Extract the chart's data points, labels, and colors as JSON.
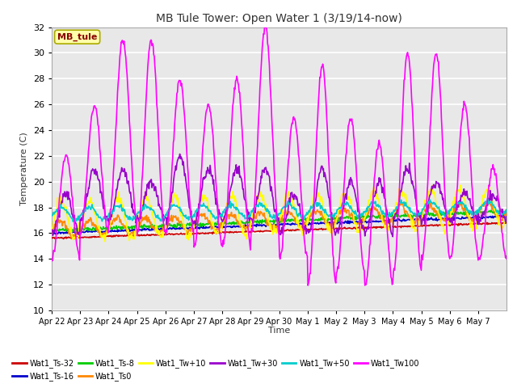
{
  "title": "MB Tule Tower: Open Water 1 (3/19/14-now)",
  "xlabel": "Time",
  "ylabel": "Temperature (C)",
  "ylim": [
    10,
    32
  ],
  "yticks": [
    10,
    12,
    14,
    16,
    18,
    20,
    22,
    24,
    26,
    28,
    30,
    32
  ],
  "bg_color": "#ffffff",
  "plot_bg": "#e8e8e8",
  "series": {
    "Wat1_Ts-32": {
      "color": "#cc0000",
      "lw": 1.2
    },
    "Wat1_Ts-16": {
      "color": "#0000cc",
      "lw": 1.2
    },
    "Wat1_Ts-8": {
      "color": "#00cc00",
      "lw": 1.2
    },
    "Wat1_Ts0": {
      "color": "#ff8800",
      "lw": 1.2
    },
    "Wat1_Tw+10": {
      "color": "#ffff00",
      "lw": 1.2
    },
    "Wat1_Tw+30": {
      "color": "#9900cc",
      "lw": 1.2
    },
    "Wat1_Tw+50": {
      "color": "#00cccc",
      "lw": 1.2
    },
    "Wat1_Tw100": {
      "color": "#ff00ff",
      "lw": 1.2
    }
  },
  "xtick_labels": [
    "Apr 22",
    "Apr 23",
    "Apr 24",
    "Apr 25",
    "Apr 26",
    "Apr 27",
    "Apr 28",
    "Apr 29",
    "Apr 30",
    "May 1",
    "May 2",
    "May 3",
    "May 4",
    "May 5",
    "May 6",
    "May 7"
  ],
  "n_days": 16,
  "pts_per_day": 48,
  "annotation_text": "MB_tule",
  "annotation_color": "#880000",
  "annotation_bg": "#ffffaa",
  "annotation_border": "#aaaa00",
  "peak_temps": [
    22,
    26,
    31,
    31,
    28,
    26,
    28,
    32,
    25,
    29,
    25,
    23,
    30,
    30,
    26,
    21
  ],
  "trough_temps": [
    14,
    16,
    17,
    16,
    16,
    15,
    15,
    16,
    14,
    12,
    13,
    12,
    13,
    14,
    14,
    14
  ],
  "tw30_peaks": [
    19,
    21,
    21,
    20,
    22,
    21,
    21,
    21,
    19,
    21,
    20,
    20,
    21,
    20,
    19,
    19
  ],
  "tw30_troughs": [
    16,
    17,
    17,
    17,
    17,
    17,
    17,
    17,
    16,
    16,
    16,
    16,
    17,
    17,
    17,
    17
  ]
}
